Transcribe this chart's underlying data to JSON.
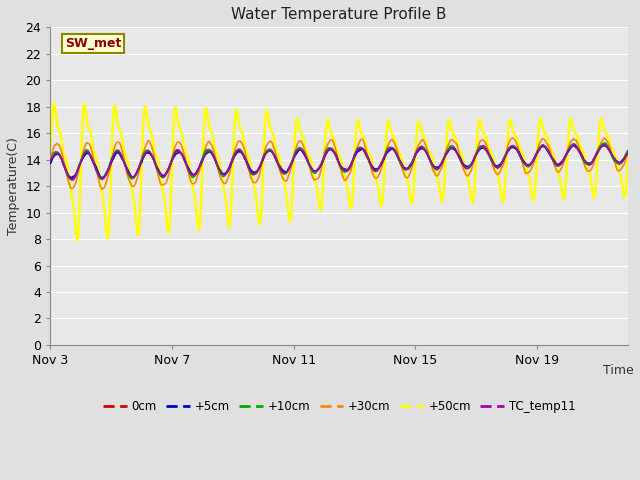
{
  "title": "Water Temperature Profile B",
  "xlabel": "Time",
  "ylabel": "Temperature(C)",
  "ylim": [
    0,
    24
  ],
  "yticks": [
    0,
    2,
    4,
    6,
    8,
    10,
    12,
    14,
    16,
    18,
    20,
    22,
    24
  ],
  "n_days": 19,
  "bg_color": "#e0e0e0",
  "plot_bg_color": "#e8e8e8",
  "grid_color": "#ffffff",
  "series": [
    {
      "label": "0cm",
      "color": "#cc0000",
      "lw": 1.2
    },
    {
      "label": "+5cm",
      "color": "#0000cc",
      "lw": 1.2
    },
    {
      "label": "+10cm",
      "color": "#00aa00",
      "lw": 1.2
    },
    {
      "label": "+30cm",
      "color": "#ff8800",
      "lw": 1.2
    },
    {
      "label": "+50cm",
      "color": "#ffff00",
      "lw": 1.8
    },
    {
      "label": "TC_temp11",
      "color": "#aa00aa",
      "lw": 1.2
    }
  ],
  "annotation_text": "SW_met",
  "annotation_color": "#880000",
  "annotation_bg": "#ffffcc",
  "annotation_border": "#888800",
  "xtick_positions": [
    0,
    4,
    8,
    12,
    16
  ],
  "xtick_labels": [
    "Nov 3",
    "Nov 7",
    "Nov 11",
    "Nov 15",
    "Nov 19"
  ]
}
